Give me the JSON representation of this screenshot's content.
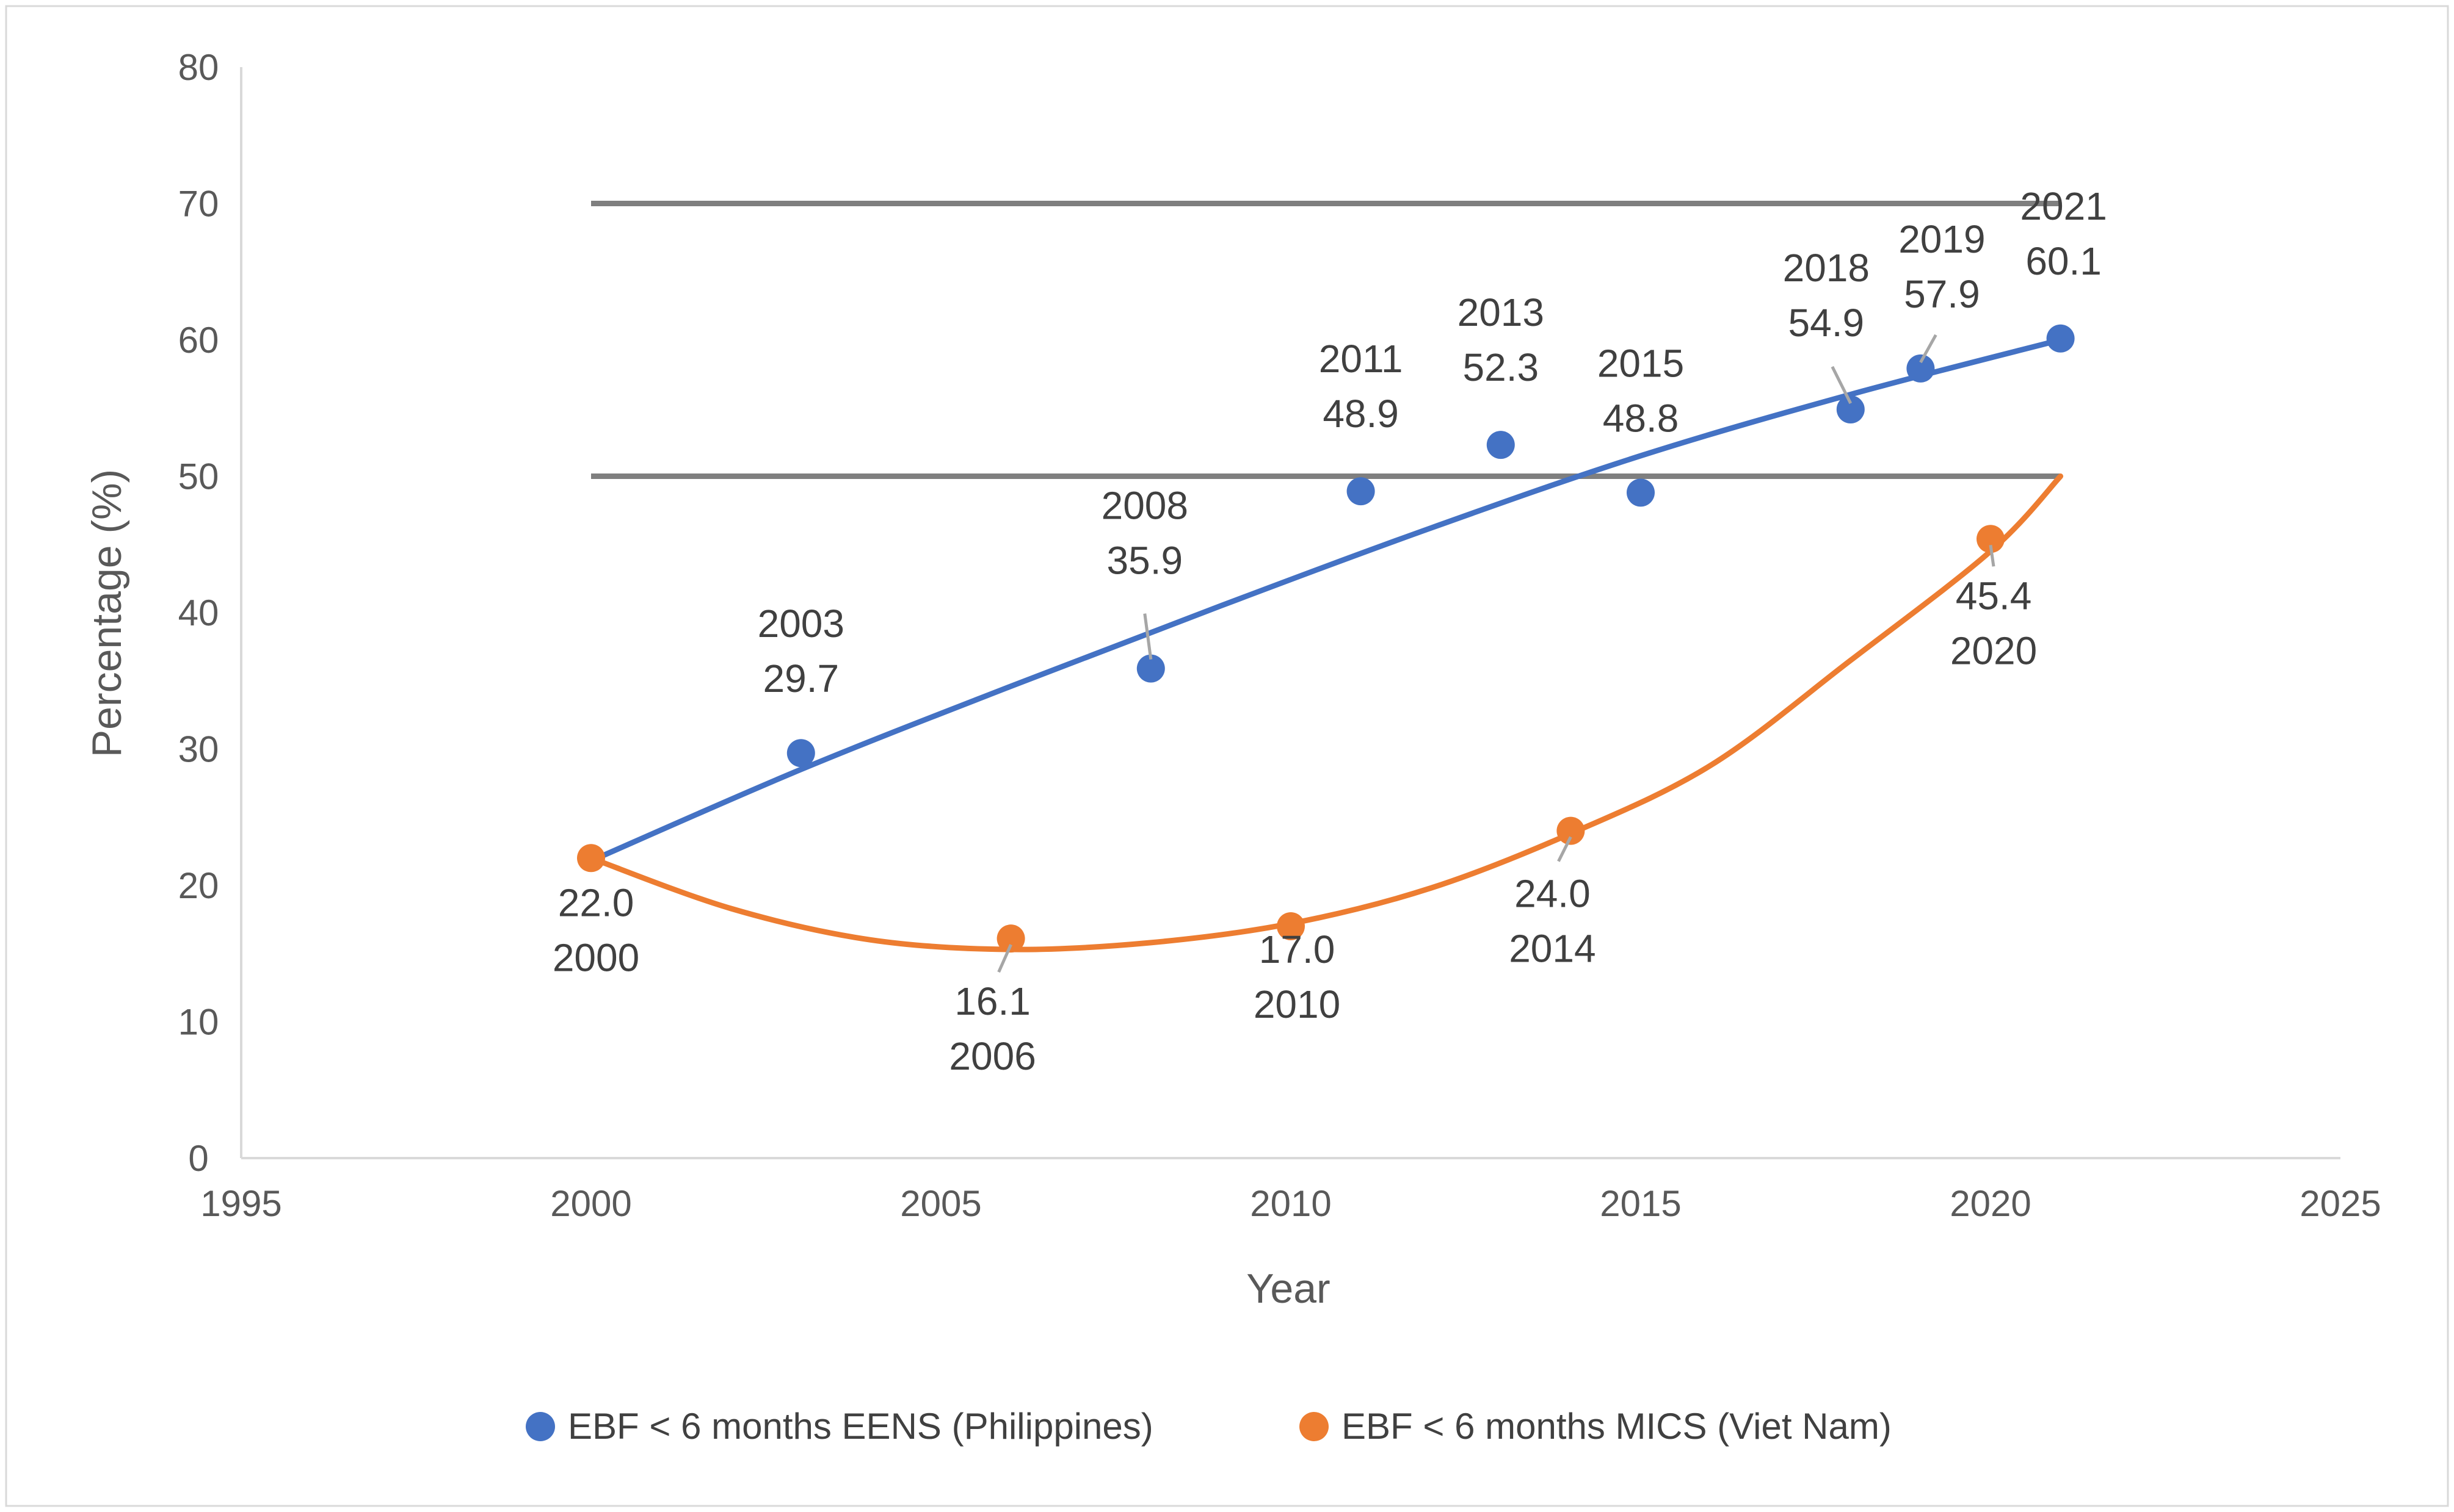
{
  "chart_data": {
    "type": "scatter",
    "title": "",
    "xlabel": "Year",
    "ylabel": "Percentage (%)",
    "xlim": [
      1995,
      2025
    ],
    "ylim": [
      0,
      80
    ],
    "xticks": [
      1995,
      2000,
      2005,
      2010,
      2015,
      2020,
      2025
    ],
    "yticks": [
      0,
      10,
      20,
      30,
      40,
      50,
      60,
      70,
      80
    ],
    "grid": false,
    "legend_position": "bottom",
    "series": [
      {
        "name": "EBF < 6 months EENS (Philippines)",
        "color": "#4472C4",
        "points": [
          {
            "x": 2003,
            "y": 29.7,
            "year": "2003",
            "value": "29.7"
          },
          {
            "x": 2008,
            "y": 35.9,
            "year": "2008",
            "value": "35.9"
          },
          {
            "x": 2011,
            "y": 48.9,
            "year": "2011",
            "value": "48.9"
          },
          {
            "x": 2013,
            "y": 52.3,
            "year": "2013",
            "value": "52.3"
          },
          {
            "x": 2015,
            "y": 48.8,
            "year": "2015",
            "value": "48.8"
          },
          {
            "x": 2018,
            "y": 54.9,
            "year": "2018",
            "value": "54.9"
          },
          {
            "x": 2019,
            "y": 57.9,
            "year": "2019",
            "value": "57.9"
          },
          {
            "x": 2021,
            "y": 60.1,
            "year": "2021",
            "value": "60.1"
          }
        ],
        "trend": [
          [
            2000,
            21.8
          ],
          [
            2003,
            28.5
          ],
          [
            2006,
            34.6
          ],
          [
            2009,
            40.5
          ],
          [
            2012,
            46.2
          ],
          [
            2015,
            51.5
          ],
          [
            2018,
            56.0
          ],
          [
            2021,
            60.0
          ]
        ]
      },
      {
        "name": "EBF < 6 months MICS (Viet Nam)",
        "color": "#ED7D31",
        "points": [
          {
            "x": 2000,
            "y": 22.0,
            "year": "2000",
            "value": "22.0"
          },
          {
            "x": 2006,
            "y": 16.1,
            "year": "2006",
            "value": "16.1"
          },
          {
            "x": 2010,
            "y": 17.0,
            "year": "2010",
            "value": "17.0"
          },
          {
            "x": 2014,
            "y": 24.0,
            "year": "2014",
            "value": "24.0"
          },
          {
            "x": 2020,
            "y": 45.4,
            "year": "2020",
            "value": "45.4"
          }
        ],
        "trend": [
          [
            2000,
            22.0
          ],
          [
            2002,
            18.3
          ],
          [
            2004,
            16.0
          ],
          [
            2006,
            15.3
          ],
          [
            2008,
            15.8
          ],
          [
            2010,
            17.2
          ],
          [
            2012,
            19.8
          ],
          [
            2014,
            23.8
          ],
          [
            2016,
            28.8
          ],
          [
            2018,
            36.5
          ],
          [
            2020,
            44.5
          ],
          [
            2021,
            50.0
          ]
        ]
      }
    ],
    "reference_lines": [
      {
        "y": 70,
        "x_start": 2000,
        "x_end": 2021,
        "color": "#7F7F7F"
      },
      {
        "y": 50,
        "x_start": 2000,
        "x_end": 2021,
        "color": "#7F7F7F"
      }
    ]
  }
}
